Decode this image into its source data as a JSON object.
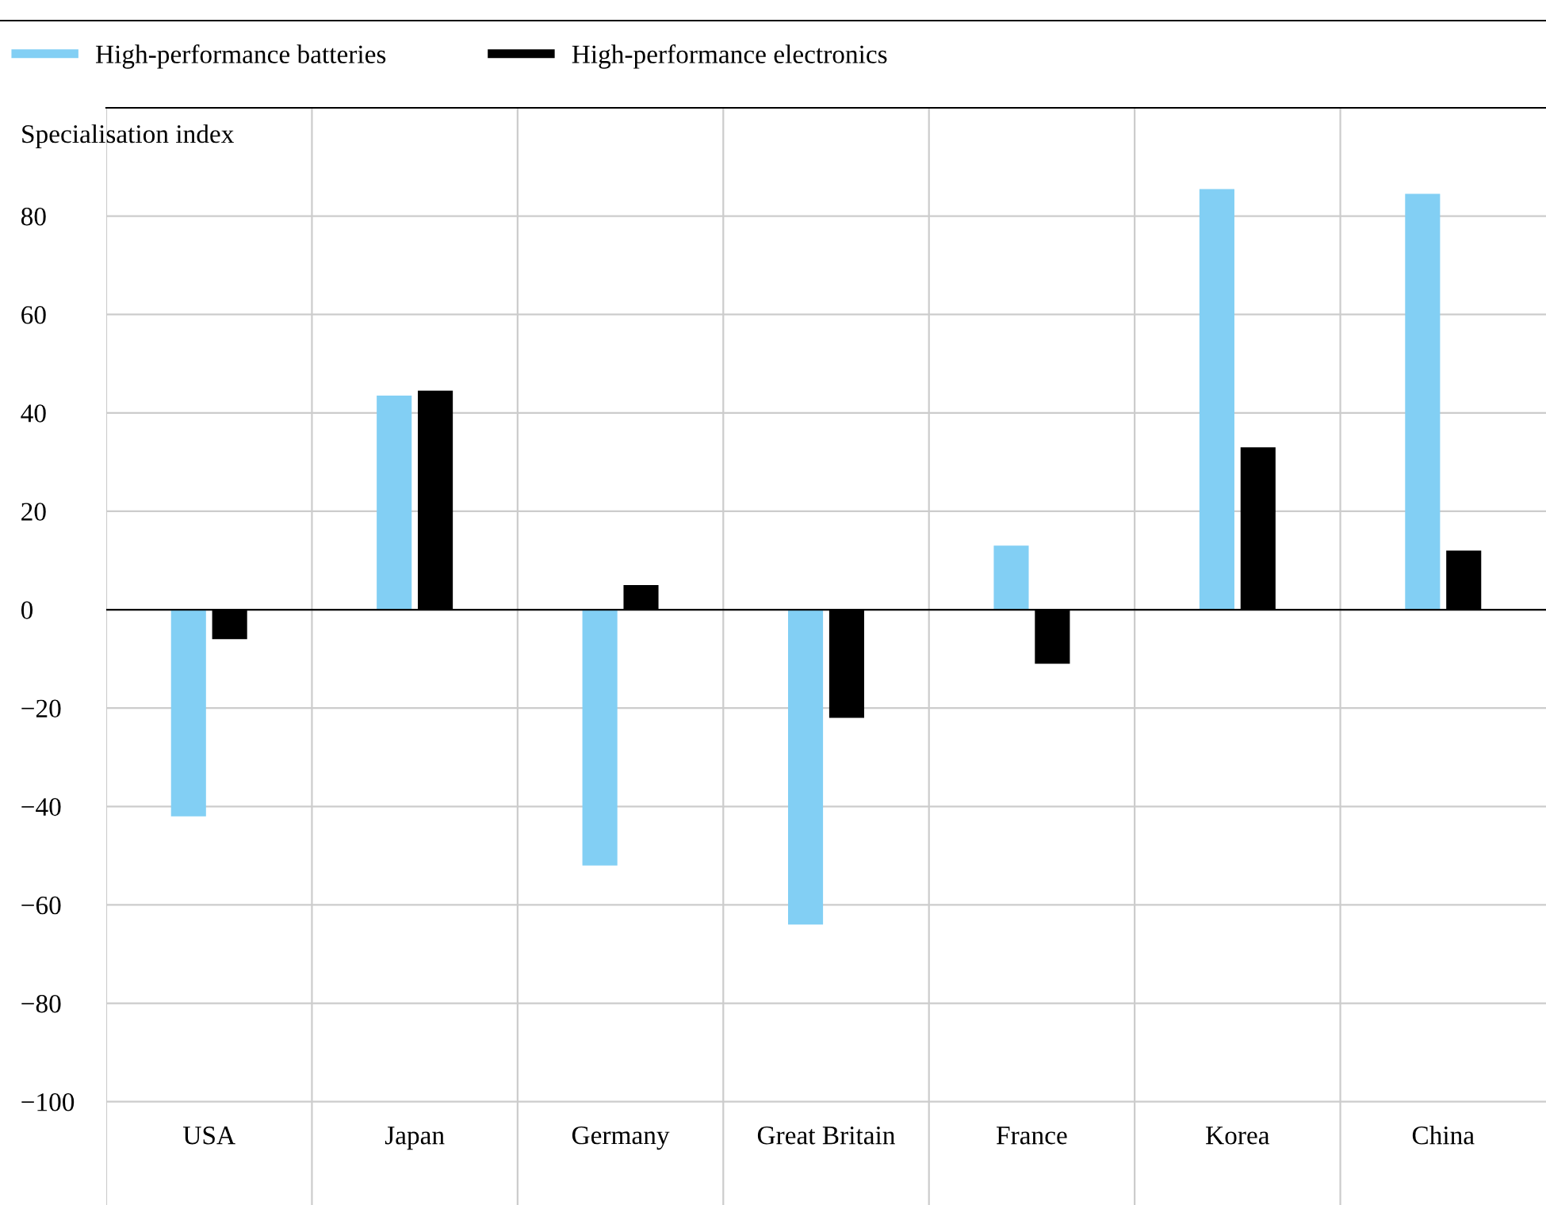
{
  "chart_data": {
    "type": "bar",
    "ylabel": "Specialisation index",
    "categories": [
      "USA",
      "Japan",
      "Germany",
      "Great Britain",
      "France",
      "Korea",
      "China"
    ],
    "series": [
      {
        "name": "High-performance batteries",
        "color": "#82cff4",
        "values": [
          -42,
          43.5,
          -52,
          -64,
          13,
          85.5,
          84.5
        ]
      },
      {
        "name": "High-performance electronics",
        "color": "#000000",
        "values": [
          -6,
          44.5,
          5,
          -22,
          -11,
          33,
          12
        ]
      }
    ],
    "ylim": [
      -121,
      102
    ],
    "yticks": [
      {
        "value": -100,
        "label": "−100"
      },
      {
        "value": -80,
        "label": "−80"
      },
      {
        "value": -60,
        "label": "−60"
      },
      {
        "value": -40,
        "label": "−40"
      },
      {
        "value": -20,
        "label": "−20"
      },
      0,
      20,
      40,
      60,
      80
    ],
    "ref_lines": [
      {
        "axis": "y",
        "value": 0,
        "color": "#000000"
      }
    ],
    "grid": true,
    "legend": "top left"
  }
}
